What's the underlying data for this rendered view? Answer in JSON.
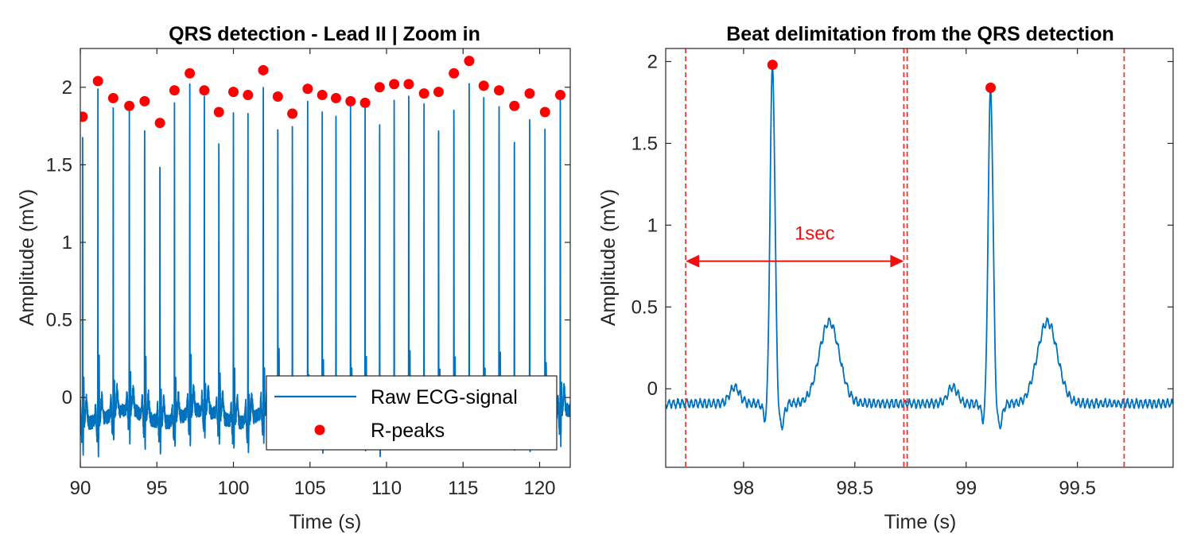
{
  "colors": {
    "signal": "#0072BD",
    "peak": "#FF0000",
    "beat_marker": "#ee3333",
    "annotation": "#ee1111"
  },
  "chart_data": [
    {
      "type": "line",
      "title": "QRS detection - Lead II | Zoom in",
      "xlabel": "Time (s)",
      "ylabel": "Amplitude (mV)",
      "xlim": [
        90,
        122
      ],
      "ylim": [
        -0.45,
        2.25
      ],
      "xticks": [
        90,
        95,
        100,
        105,
        110,
        115,
        120
      ],
      "xtick_labels": [
        "90",
        "95",
        "100",
        "105",
        "110",
        "115",
        "120"
      ],
      "yticks": [
        0,
        0.5,
        1,
        1.5,
        2
      ],
      "ytick_labels": [
        "0",
        "0.5",
        "1",
        "1.5",
        "2"
      ],
      "grid": false,
      "legend_position": "bottom-right",
      "series": [
        {
          "name": "Raw ECG-signal",
          "kind": "line",
          "baseline": -0.12
        },
        {
          "name": "R-peaks",
          "kind": "markers",
          "x": [
            90.15,
            91.15,
            92.15,
            93.2,
            94.2,
            95.2,
            96.15,
            97.15,
            98.1,
            99.05,
            100.0,
            100.95,
            101.95,
            102.9,
            103.85,
            104.85,
            105.8,
            106.7,
            107.65,
            108.6,
            109.55,
            110.5,
            111.45,
            112.45,
            113.4,
            114.4,
            115.4,
            116.35,
            117.35,
            118.35,
            119.35,
            120.35,
            121.35
          ],
          "y": [
            1.81,
            2.04,
            1.93,
            1.88,
            1.91,
            1.77,
            1.98,
            2.09,
            1.98,
            1.84,
            1.97,
            1.95,
            2.11,
            1.94,
            1.83,
            1.99,
            1.95,
            1.93,
            1.91,
            1.9,
            2.0,
            2.02,
            2.02,
            1.96,
            1.97,
            2.09,
            2.17,
            2.01,
            1.98,
            1.88,
            1.96,
            1.84,
            1.95
          ]
        }
      ]
    },
    {
      "type": "line",
      "title": "Beat delimitation from the QRS detection",
      "xlabel": "Time (s)",
      "ylabel": "Amplitude (mV)",
      "xlim": [
        97.65,
        99.93
      ],
      "ylim": [
        -0.48,
        2.08
      ],
      "xticks": [
        98,
        98.5,
        99,
        99.5
      ],
      "xtick_labels": [
        "98",
        "98.5",
        "99",
        "99.5"
      ],
      "yticks": [
        0,
        0.5,
        1,
        1.5,
        2
      ],
      "ytick_labels": [
        "0",
        "0.5",
        "1",
        "1.5",
        "2"
      ],
      "grid": false,
      "series": [
        {
          "name": "Raw ECG-signal",
          "kind": "line",
          "baseline": -0.09,
          "r_times": [
            98.13,
            99.11
          ],
          "r_amplitudes": [
            1.98,
            1.84
          ]
        },
        {
          "name": "R-peaks",
          "kind": "markers",
          "x": [
            98.13,
            99.11
          ],
          "y": [
            1.98,
            1.84
          ]
        }
      ],
      "vertical_lines": [
        97.74,
        98.72,
        98.735,
        99.71
      ],
      "annotation": {
        "text": "1sec",
        "x_start": 97.74,
        "x_end": 98.72,
        "y": 0.78
      }
    }
  ]
}
